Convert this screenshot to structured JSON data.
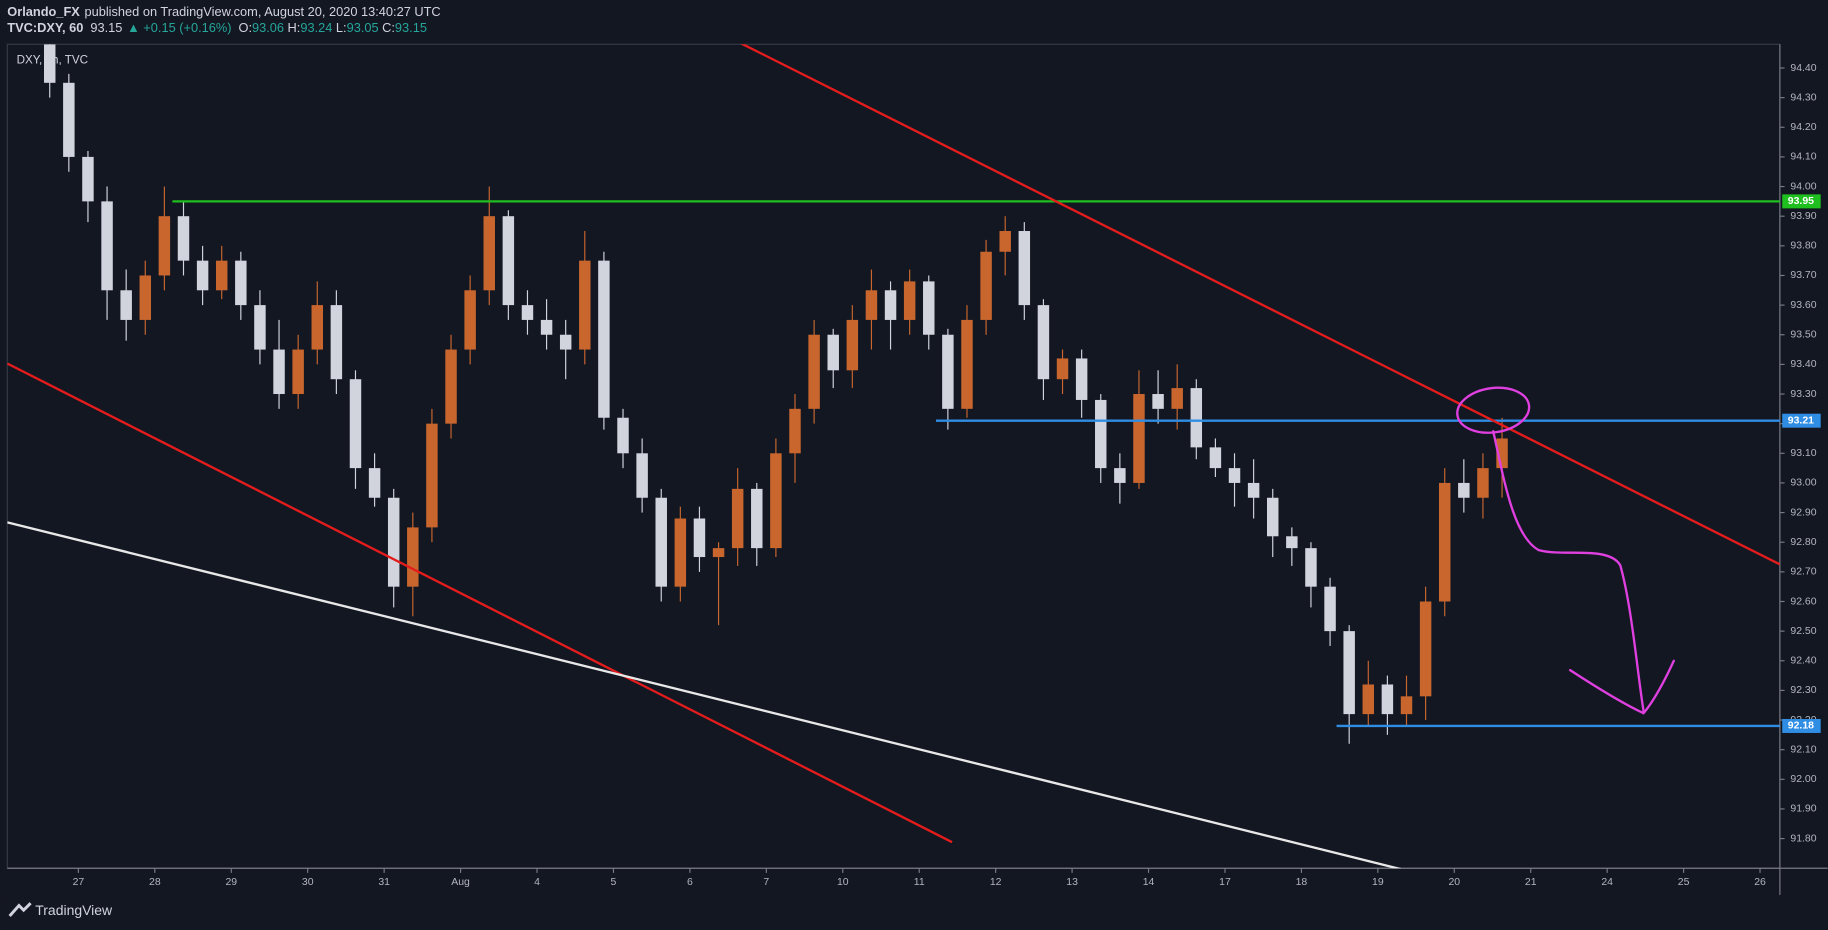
{
  "header": {
    "publisher": "Orlando_FX",
    "published": "published on TradingView.com, August 20, 2020 13:40:27 UTC",
    "symbol": "TVC:DXY, 60",
    "last": 93.15,
    "change": "▲ +0.15 (+0.16%)",
    "ohlc": [
      {
        "label": "O:",
        "value": 93.06
      },
      {
        "label": "H:",
        "value": 93.24
      },
      {
        "label": "L:",
        "value": 93.05
      },
      {
        "label": "C:",
        "value": 93.15
      }
    ]
  },
  "chart_data": {
    "type": "candlestick",
    "symbol_label": "DXY, 1h, TVC",
    "xlim": [
      -0.93,
      22.26
    ],
    "ylim": [
      91.7,
      94.48
    ],
    "xticks": [
      {
        "value": 0,
        "label": "27"
      },
      {
        "value": 1,
        "label": "28"
      },
      {
        "value": 2,
        "label": "29"
      },
      {
        "value": 3,
        "label": "30"
      },
      {
        "value": 4,
        "label": "31"
      },
      {
        "value": 5,
        "label": "Aug"
      },
      {
        "value": 6,
        "label": "4"
      },
      {
        "value": 7,
        "label": "5"
      },
      {
        "value": 8,
        "label": "6"
      },
      {
        "value": 9,
        "label": "7"
      },
      {
        "value": 10,
        "label": "10"
      },
      {
        "value": 11,
        "label": "11"
      },
      {
        "value": 12,
        "label": "12"
      },
      {
        "value": 13,
        "label": "13"
      },
      {
        "value": 14,
        "label": "14"
      },
      {
        "value": 15,
        "label": "17"
      },
      {
        "value": 16,
        "label": "18"
      },
      {
        "value": 17,
        "label": "19"
      },
      {
        "value": 18,
        "label": "20"
      },
      {
        "value": 19,
        "label": "21"
      },
      {
        "value": 20,
        "label": "24"
      },
      {
        "value": 21,
        "label": "25"
      },
      {
        "value": 22,
        "label": "26"
      }
    ],
    "yticks": [
      {
        "value": 91.8,
        "label": "91.80"
      },
      {
        "value": 91.9,
        "label": "91.90"
      },
      {
        "value": 92.0,
        "label": "92.00"
      },
      {
        "value": 92.1,
        "label": "92.10"
      },
      {
        "value": 92.2,
        "label": "92.20"
      },
      {
        "value": 92.3,
        "label": "92.30"
      },
      {
        "value": 92.4,
        "label": "92.40"
      },
      {
        "value": 92.5,
        "label": "92.50"
      },
      {
        "value": 92.6,
        "label": "92.60"
      },
      {
        "value": 92.7,
        "label": "92.70"
      },
      {
        "value": 92.8,
        "label": "92.80"
      },
      {
        "value": 92.9,
        "label": "92.90"
      },
      {
        "value": 93.0,
        "label": "93.00"
      },
      {
        "value": 93.1,
        "label": "93.10"
      },
      {
        "value": 93.2,
        "label": "93.20"
      },
      {
        "value": 93.3,
        "label": "93.30"
      },
      {
        "value": 93.4,
        "label": "93.40"
      },
      {
        "value": 93.5,
        "label": "93.50"
      },
      {
        "value": 93.6,
        "label": "93.60"
      },
      {
        "value": 93.7,
        "label": "93.70"
      },
      {
        "value": 93.8,
        "label": "93.80"
      },
      {
        "value": 93.9,
        "label": "93.90"
      },
      {
        "value": 94.0,
        "label": "94.00"
      },
      {
        "value": 94.1,
        "label": "94.10"
      },
      {
        "value": 94.2,
        "label": "94.20"
      },
      {
        "value": 94.3,
        "label": "94.30"
      },
      {
        "value": 94.4,
        "label": "94.40"
      }
    ],
    "up_color": "#c8662e",
    "down_color": "#d1d4dc",
    "x": [
      -0.375,
      -0.125,
      0.125,
      0.375,
      0.625,
      0.875,
      1.125,
      1.375,
      1.625,
      1.875,
      2.125,
      2.375,
      2.625,
      2.875,
      3.125,
      3.375,
      3.625,
      3.875,
      4.125,
      4.375,
      4.625,
      4.875,
      5.125,
      5.375,
      5.625,
      5.875,
      6.125,
      6.375,
      6.625,
      6.875,
      7.125,
      7.375,
      7.625,
      7.875,
      8.125,
      8.375,
      8.625,
      8.875,
      9.125,
      9.375,
      9.625,
      9.875,
      10.125,
      10.375,
      10.625,
      10.875,
      11.125,
      11.375,
      11.625,
      11.875,
      12.125,
      12.375,
      12.625,
      12.875,
      13.125,
      13.375,
      13.625,
      13.875,
      14.125,
      14.375,
      14.625,
      14.875,
      15.125,
      15.375,
      15.625,
      15.875,
      16.125,
      16.375,
      16.625,
      16.875,
      17.125,
      17.375,
      17.625,
      17.875,
      18.125,
      18.375,
      18.625
    ],
    "open": [
      94.48,
      94.35,
      94.1,
      93.95,
      93.65,
      93.55,
      93.7,
      93.9,
      93.75,
      93.65,
      93.75,
      93.6,
      93.45,
      93.3,
      93.45,
      93.6,
      93.35,
      93.05,
      92.95,
      92.65,
      92.85,
      93.2,
      93.45,
      93.65,
      93.9,
      93.6,
      93.55,
      93.5,
      93.45,
      93.75,
      93.22,
      93.1,
      92.95,
      92.65,
      92.88,
      92.75,
      92.78,
      92.98,
      92.78,
      93.1,
      93.25,
      93.5,
      93.38,
      93.55,
      93.65,
      93.55,
      93.68,
      93.5,
      93.25,
      93.55,
      93.78,
      93.85,
      93.6,
      93.35,
      93.42,
      93.28,
      93.05,
      93.0,
      93.3,
      93.25,
      93.32,
      93.12,
      93.05,
      93.0,
      92.95,
      92.82,
      92.78,
      92.65,
      92.5,
      92.22,
      92.32,
      92.22,
      92.28,
      92.6,
      93.0,
      92.95,
      93.05
    ],
    "high": [
      94.5,
      94.38,
      94.12,
      94.0,
      93.72,
      93.75,
      94.0,
      93.95,
      93.8,
      93.8,
      93.78,
      93.65,
      93.55,
      93.5,
      93.68,
      93.65,
      93.38,
      93.1,
      92.98,
      92.9,
      93.25,
      93.5,
      93.7,
      94.0,
      93.92,
      93.65,
      93.62,
      93.55,
      93.85,
      93.78,
      93.25,
      93.15,
      92.98,
      92.92,
      92.92,
      92.8,
      93.05,
      93.0,
      93.15,
      93.3,
      93.55,
      93.52,
      93.6,
      93.72,
      93.68,
      93.72,
      93.7,
      93.52,
      93.6,
      93.82,
      93.9,
      93.88,
      93.62,
      93.45,
      93.45,
      93.3,
      93.1,
      93.38,
      93.38,
      93.4,
      93.35,
      93.15,
      93.1,
      93.08,
      92.98,
      92.85,
      92.8,
      92.68,
      92.52,
      92.4,
      92.35,
      92.35,
      92.65,
      93.05,
      93.08,
      93.1,
      93.22
    ],
    "low": [
      94.3,
      94.05,
      93.88,
      93.55,
      93.48,
      93.5,
      93.65,
      93.7,
      93.6,
      93.62,
      93.55,
      93.4,
      93.25,
      93.25,
      93.4,
      93.3,
      92.98,
      92.92,
      92.58,
      92.55,
      92.8,
      93.15,
      93.4,
      93.6,
      93.55,
      93.5,
      93.45,
      93.35,
      93.4,
      93.18,
      93.05,
      92.9,
      92.6,
      92.6,
      92.7,
      92.52,
      92.72,
      92.72,
      92.75,
      93.0,
      93.2,
      93.32,
      93.32,
      93.45,
      93.45,
      93.5,
      93.45,
      93.18,
      93.22,
      93.5,
      93.7,
      93.55,
      93.28,
      93.3,
      93.22,
      93.0,
      92.93,
      92.98,
      93.2,
      93.18,
      93.08,
      93.02,
      92.92,
      92.88,
      92.75,
      92.72,
      92.58,
      92.45,
      92.12,
      92.18,
      92.15,
      92.18,
      92.2,
      92.55,
      92.9,
      92.88,
      92.95
    ],
    "close": [
      94.35,
      94.1,
      93.95,
      93.65,
      93.55,
      93.7,
      93.9,
      93.75,
      93.65,
      93.75,
      93.6,
      93.45,
      93.3,
      93.45,
      93.6,
      93.35,
      93.05,
      92.95,
      92.65,
      92.85,
      93.2,
      93.45,
      93.65,
      93.9,
      93.6,
      93.55,
      93.5,
      93.45,
      93.75,
      93.22,
      93.1,
      92.95,
      92.65,
      92.88,
      92.75,
      92.78,
      92.98,
      92.78,
      93.1,
      93.25,
      93.5,
      93.38,
      93.55,
      93.65,
      93.55,
      93.68,
      93.5,
      93.25,
      93.55,
      93.78,
      93.85,
      93.6,
      93.35,
      93.42,
      93.28,
      93.05,
      93.0,
      93.3,
      93.25,
      93.32,
      93.12,
      93.05,
      93.0,
      92.95,
      92.82,
      92.78,
      92.65,
      92.5,
      92.22,
      92.32,
      92.22,
      92.28,
      92.6,
      93.0,
      92.95,
      93.05,
      93.15
    ],
    "lines": [
      {
        "color": "#1fbf1f",
        "x": [
          1.23,
          22.26
        ],
        "y": [
          93.95,
          93.95
        ],
        "label": "93.95"
      },
      {
        "color": "#2f8de4",
        "x": [
          11.22,
          22.26
        ],
        "y": [
          93.21,
          93.21
        ],
        "label": "93.21"
      },
      {
        "color": "#2f8de4",
        "x": [
          16.46,
          22.26
        ],
        "y": [
          92.18,
          92.18
        ],
        "label": "92.18"
      },
      {
        "color": "#e51c1c",
        "x": [
          8.67,
          22.26
        ],
        "y": [
          94.483,
          92.725
        ]
      },
      {
        "color": "#e51c1c",
        "x": [
          -0.93,
          11.43
        ],
        "y": [
          93.403,
          91.788
        ]
      },
      {
        "color": "#e8e8e8",
        "x": [
          -0.93,
          17.3
        ],
        "y": [
          92.867,
          91.697
        ]
      }
    ]
  }
}
